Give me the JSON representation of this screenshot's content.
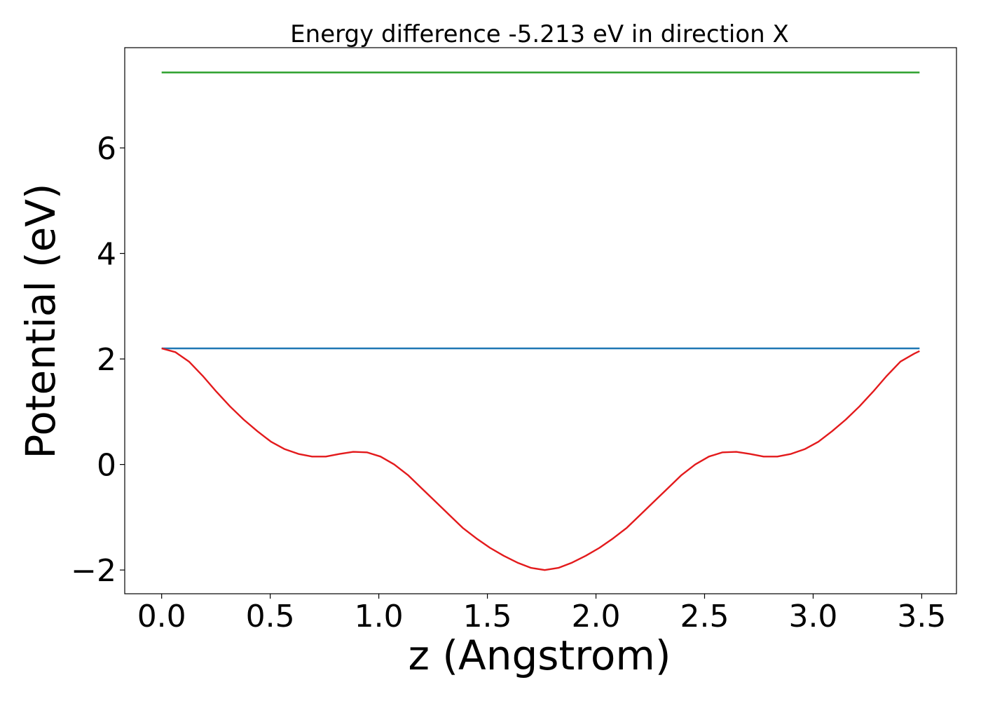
{
  "chart_data": {
    "type": "line",
    "title": "Energy difference -5.213 eV in direction X",
    "xlabel": "z (Angstrom)",
    "ylabel": "Potential (eV)",
    "xlim": [
      -0.17,
      3.66
    ],
    "ylim": [
      -2.45,
      7.9
    ],
    "x_ticks": [
      0.0,
      0.5,
      1.0,
      1.5,
      2.0,
      2.5,
      3.0,
      3.5
    ],
    "x_tick_labels": [
      "0.0",
      "0.5",
      "1.0",
      "1.5",
      "2.0",
      "2.5",
      "3.0",
      "3.5"
    ],
    "y_ticks": [
      -2,
      0,
      2,
      4,
      6
    ],
    "y_tick_labels": [
      "−2",
      "0",
      "2",
      "4",
      "6"
    ],
    "grid": false,
    "series": [
      {
        "color": "#2ca02c",
        "x": [
          0.0,
          3.49
        ],
        "y": [
          7.43,
          7.43
        ]
      },
      {
        "color": "#1f77b4",
        "x": [
          0.0,
          3.49
        ],
        "y": [
          2.2,
          2.2
        ]
      },
      {
        "color": "#e31a1c",
        "x": [
          0.0,
          0.063,
          0.126,
          0.189,
          0.252,
          0.315,
          0.378,
          0.441,
          0.504,
          0.567,
          0.63,
          0.693,
          0.756,
          0.819,
          0.882,
          0.945,
          1.008,
          1.071,
          1.134,
          1.197,
          1.26,
          1.323,
          1.386,
          1.449,
          1.512,
          1.575,
          1.638,
          1.701,
          1.764,
          1.827,
          1.89,
          1.953,
          2.016,
          2.079,
          2.142,
          2.205,
          2.268,
          2.331,
          2.394,
          2.457,
          2.52,
          2.583,
          2.646,
          2.709,
          2.772,
          2.835,
          2.898,
          2.961,
          3.024,
          3.087,
          3.15,
          3.213,
          3.276,
          3.339,
          3.402,
          3.465,
          3.49
        ],
        "y": [
          2.2,
          2.13,
          1.95,
          1.68,
          1.38,
          1.1,
          0.85,
          0.63,
          0.43,
          0.29,
          0.2,
          0.15,
          0.15,
          0.2,
          0.24,
          0.23,
          0.15,
          0.0,
          -0.2,
          -0.45,
          -0.7,
          -0.95,
          -1.2,
          -1.4,
          -1.58,
          -1.73,
          -1.86,
          -1.96,
          -2.0,
          -1.96,
          -1.86,
          -1.73,
          -1.58,
          -1.4,
          -1.2,
          -0.95,
          -0.7,
          -0.45,
          -0.2,
          0.0,
          0.15,
          0.23,
          0.24,
          0.2,
          0.15,
          0.15,
          0.2,
          0.29,
          0.43,
          0.63,
          0.85,
          1.1,
          1.38,
          1.68,
          1.95,
          2.1,
          2.15
        ]
      }
    ]
  }
}
